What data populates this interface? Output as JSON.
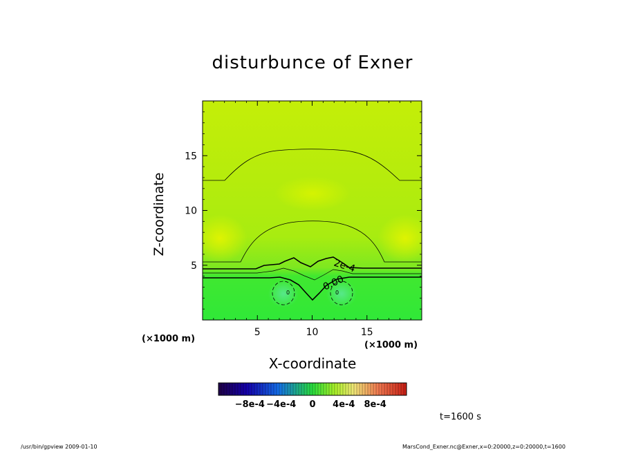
{
  "chart_data": {
    "type": "heatmap",
    "title": "disturbunce of Exner",
    "xlabel": "X-coordinate",
    "ylabel": "Z-coordinate",
    "x_unit": "(×1000 m)",
    "xlim": [
      0,
      20
    ],
    "ylim": [
      0,
      20
    ],
    "x_ticks": [
      5,
      10,
      15
    ],
    "y_ticks": [
      5,
      10,
      15
    ],
    "contour_labels": [
      "2e-4",
      "0.00",
      "0",
      "0"
    ],
    "colorbar": {
      "min": -0.0012,
      "max": 0.0012,
      "tick_labels": [
        "−8e-4",
        "−4e-4",
        "0",
        "4e-4",
        "8e-4"
      ],
      "tick_values": [
        -0.0008,
        -0.0004,
        0,
        0.0004,
        0.0008
      ]
    },
    "time": "t=1600 s"
  },
  "footer": {
    "left": "/usr/bin/gpview   2009-01-10",
    "right": "MarsCond_Exner.nc@Exner,x=0:20000,z=0:20000,t=1600"
  },
  "colors": {
    "field_high": "#c8f000",
    "field_mid": "#a0ec10",
    "field_low": "#30e838"
  }
}
